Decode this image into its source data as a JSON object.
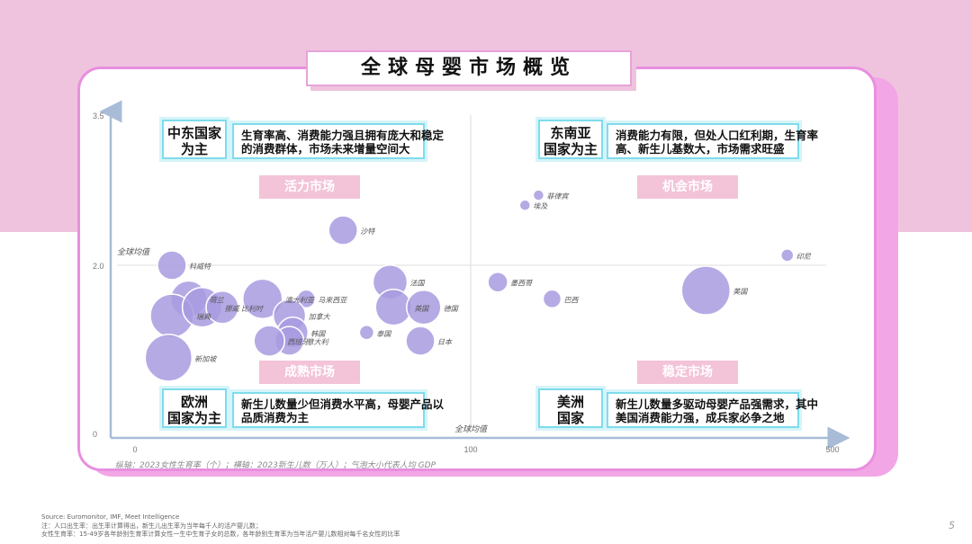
{
  "page": {
    "title": "全球母婴市场概览",
    "page_number": "5",
    "note": "纵轴：2023女性生育率（个）；横轴：2023新生儿数（万人）；气泡大小代表人均 GDP",
    "sources": [
      "Source: Euromonitor, IMF, Meet Intelligence",
      "注：人口出生率：出生率计算得出，新生儿出生率为当年每千人的活产婴儿数；",
      "女性生育率：15-49岁各年龄别生育率计算女性一生中生育子女的总数，各年龄别生育率为当年活产婴儿数相对每千名女性的比率"
    ]
  },
  "quadrants": [
    {
      "region": "中东国家\n为主",
      "desc": "生育率高、消费能力强且拥有庞大和稳定\n的消费群体，市场未来增量空间大",
      "tag": "活力市场"
    },
    {
      "region": "东南亚\n国家为主",
      "desc": "消费能力有限，但处人口红利期，生育率\n高、新生儿基数大，市场需求旺盛",
      "tag": "机会市场"
    },
    {
      "region": "欧洲\n国家为主",
      "desc": "新生儿数量少但消费水平高，母婴产品以\n品质消费为主",
      "tag": "成熟市场"
    },
    {
      "region": "美洲\n国家",
      "desc": "新生儿数量多驱动母婴产品强需求，其中\n美国消费能力强，成兵家必争之地",
      "tag": "稳定市场"
    }
  ],
  "chart_data": {
    "type": "scatter",
    "title": "",
    "xlabel": "",
    "ylabel": "",
    "x_ticks": [
      "0",
      "100",
      "500"
    ],
    "y_ticks": [
      "0",
      "2.0",
      "3.5"
    ],
    "avg_labels": {
      "y": "全球均值",
      "x": "全球均值"
    },
    "bubble_color": "#a99be0",
    "points": [
      {
        "name": "沙特",
        "x": 62,
        "y": 2.35,
        "size": 16
      },
      {
        "name": "科威特",
        "x": 11,
        "y": 2.0,
        "size": 16
      },
      {
        "name": "荷兰",
        "x": 16,
        "y": 1.6,
        "size": 20
      },
      {
        "name": "瑞典",
        "x": 11,
        "y": 1.4,
        "size": 24
      },
      {
        "name": "挪威",
        "x": 20,
        "y": 1.5,
        "size": 22
      },
      {
        "name": "新加坡",
        "x": 10,
        "y": 0.9,
        "size": 26
      },
      {
        "name": "比利时",
        "x": 26,
        "y": 1.5,
        "size": 18
      },
      {
        "name": "澳大利亚",
        "x": 38,
        "y": 1.6,
        "size": 22
      },
      {
        "name": "马来西亚",
        "x": 51,
        "y": 1.6,
        "size": 10
      },
      {
        "name": "加拿大",
        "x": 46,
        "y": 1.4,
        "size": 18
      },
      {
        "name": "韩国",
        "x": 47,
        "y": 1.2,
        "size": 17
      },
      {
        "name": "意大利",
        "x": 46,
        "y": 1.1,
        "size": 16
      },
      {
        "name": "西班牙",
        "x": 40,
        "y": 1.1,
        "size": 17
      },
      {
        "name": "泰国",
        "x": 69,
        "y": 1.2,
        "size": 8
      },
      {
        "name": "法国",
        "x": 76,
        "y": 1.8,
        "size": 19
      },
      {
        "name": "英国",
        "x": 77,
        "y": 1.5,
        "size": 20
      },
      {
        "name": "德国",
        "x": 86,
        "y": 1.5,
        "size": 19
      },
      {
        "name": "日本",
        "x": 85,
        "y": 1.1,
        "size": 16
      },
      {
        "name": "菲律宾",
        "x": 175,
        "y": 2.7,
        "size": 6
      },
      {
        "name": "埃及",
        "x": 160,
        "y": 2.6,
        "size": 6
      },
      {
        "name": "印尼",
        "x": 450,
        "y": 2.1,
        "size": 7
      },
      {
        "name": "墨西哥",
        "x": 130,
        "y": 1.8,
        "size": 11
      },
      {
        "name": "美国",
        "x": 360,
        "y": 1.7,
        "size": 27
      },
      {
        "name": "巴西",
        "x": 190,
        "y": 1.6,
        "size": 10
      }
    ]
  }
}
